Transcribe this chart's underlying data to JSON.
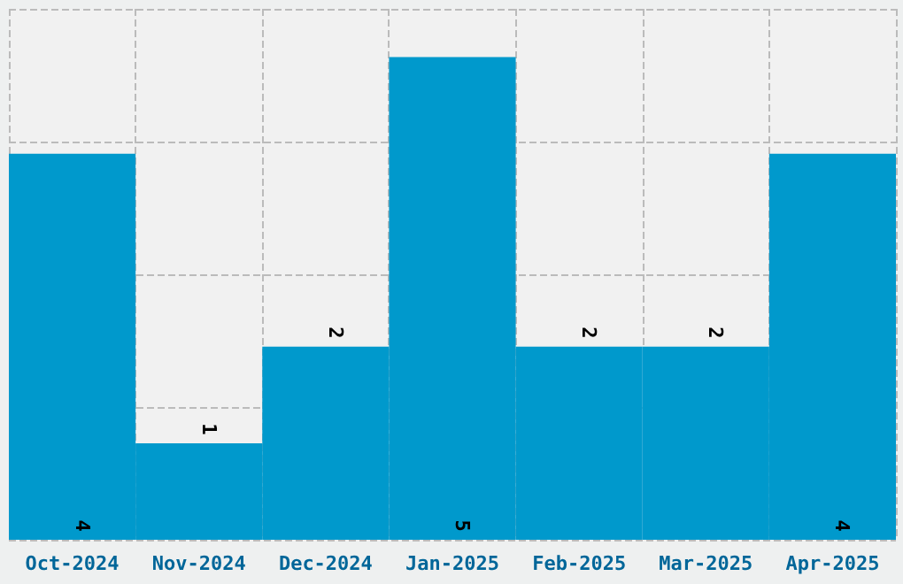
{
  "chart_data": {
    "type": "bar",
    "categories": [
      "Oct-2024",
      "Nov-2024",
      "Dec-2024",
      "Jan-2025",
      "Feb-2025",
      "Mar-2025",
      "Apr-2025"
    ],
    "values": [
      4,
      1,
      2,
      5,
      2,
      2,
      4
    ],
    "color": "#0099cc",
    "data_labels": true,
    "ylim": [
      0,
      5.5
    ],
    "yticks": [
      {
        "value": 0,
        "label": null
      },
      {
        "value": 1.375,
        "label": null
      },
      {
        "value": 2.75,
        "label": null
      },
      {
        "value": 4.125,
        "label": null
      },
      {
        "value": 5.5,
        "label": null
      }
    ],
    "grid": true,
    "tick_labels": "x"
  }
}
